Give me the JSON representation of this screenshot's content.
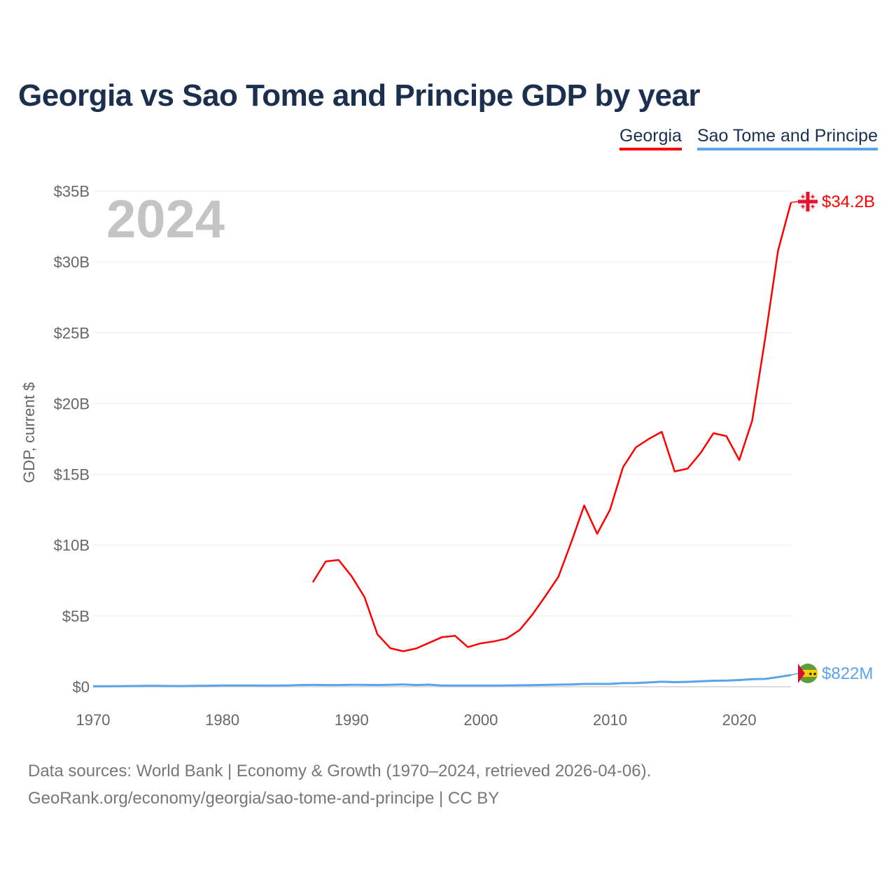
{
  "title": "Georgia vs Sao Tome and Principe GDP by year",
  "legend": [
    {
      "label": "Georgia",
      "color": "#ff0000"
    },
    {
      "label": "Sao Tome and Principe",
      "color": "#5ba4ea"
    }
  ],
  "year_label": "2024",
  "footer": {
    "line1": "Data sources: World Bank | Economy & Growth (1970–2024, retrieved 2026-04-06).",
    "line2": "GeoRank.org/economy/georgia/sao-tome-and-principe | CC BY"
  },
  "chart_data": {
    "type": "line",
    "title": "Georgia vs Sao Tome and Principe GDP by year",
    "xlabel": "",
    "ylabel": "GDP, current $",
    "xlim": [
      1970,
      2024
    ],
    "ylim": [
      0,
      35
    ],
    "y_unit": "billion USD",
    "x_ticks": [
      "1970",
      "1980",
      "1990",
      "2000",
      "2010",
      "2020"
    ],
    "x_tick_values": [
      1970,
      1980,
      1990,
      2000,
      2010,
      2020
    ],
    "y_ticks": [
      "$0",
      "$5B",
      "$10B",
      "$15B",
      "$20B",
      "$25B",
      "$30B",
      "$35B"
    ],
    "y_tick_values": [
      0,
      5,
      10,
      15,
      20,
      25,
      30,
      35
    ],
    "grid": true,
    "legend_position": "top-right",
    "series": [
      {
        "name": "Georgia",
        "color": "#ff0000",
        "end_label": "$34.2B",
        "x": [
          1987,
          1988,
          1989,
          1990,
          1991,
          1992,
          1993,
          1994,
          1995,
          1996,
          1997,
          1998,
          1999,
          2000,
          2001,
          2002,
          2003,
          2004,
          2005,
          2006,
          2007,
          2008,
          2009,
          2010,
          2011,
          2012,
          2013,
          2014,
          2015,
          2016,
          2017,
          2018,
          2019,
          2020,
          2021,
          2022,
          2023,
          2024
        ],
        "values": [
          7.37,
          8.85,
          8.95,
          7.8,
          6.33,
          3.7,
          2.72,
          2.5,
          2.7,
          3.1,
          3.5,
          3.6,
          2.8,
          3.06,
          3.2,
          3.4,
          4.0,
          5.1,
          6.4,
          7.76,
          10.2,
          12.8,
          10.8,
          12.5,
          15.5,
          16.9,
          17.5,
          18.0,
          15.2,
          15.4,
          16.5,
          17.9,
          17.7,
          16.0,
          18.8,
          24.6,
          30.8,
          34.2
        ]
      },
      {
        "name": "Sao Tome and Principe",
        "color": "#5ba4ea",
        "end_label": "$822M",
        "x": [
          1970,
          1971,
          1972,
          1973,
          1974,
          1975,
          1976,
          1977,
          1978,
          1979,
          1980,
          1981,
          1982,
          1983,
          1984,
          1985,
          1986,
          1987,
          1988,
          1989,
          1990,
          1991,
          1992,
          1993,
          1994,
          1995,
          1996,
          1997,
          1998,
          1999,
          2000,
          2001,
          2002,
          2003,
          2004,
          2005,
          2006,
          2007,
          2008,
          2009,
          2010,
          2011,
          2012,
          2013,
          2014,
          2015,
          2016,
          2017,
          2018,
          2019,
          2020,
          2021,
          2022,
          2023,
          2024
        ],
        "values": [
          0.03,
          0.03,
          0.04,
          0.05,
          0.06,
          0.06,
          0.05,
          0.05,
          0.06,
          0.07,
          0.09,
          0.09,
          0.09,
          0.08,
          0.08,
          0.09,
          0.12,
          0.13,
          0.12,
          0.12,
          0.14,
          0.13,
          0.12,
          0.14,
          0.16,
          0.12,
          0.15,
          0.08,
          0.08,
          0.08,
          0.08,
          0.08,
          0.09,
          0.1,
          0.11,
          0.13,
          0.15,
          0.16,
          0.2,
          0.2,
          0.2,
          0.25,
          0.26,
          0.3,
          0.35,
          0.32,
          0.34,
          0.38,
          0.42,
          0.43,
          0.47,
          0.53,
          0.55,
          0.68,
          0.822
        ]
      }
    ]
  }
}
